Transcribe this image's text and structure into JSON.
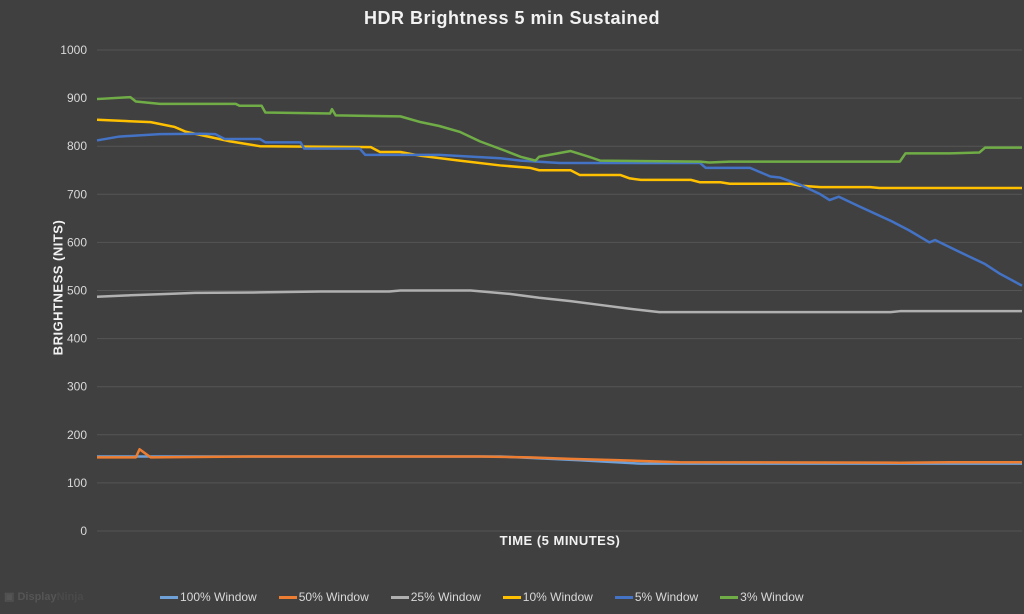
{
  "chart_data": {
    "type": "line",
    "title": "HDR Brightness  5 min Sustained",
    "xlabel": "TIME (5 MINUTES)",
    "ylabel": "BRIGHTNESS (NITS)",
    "xlim": [
      0,
      5
    ],
    "ylim": [
      0,
      1000
    ],
    "yticks": [
      "0",
      "100",
      "200",
      "300",
      "400",
      "500",
      "600",
      "700",
      "800",
      "900",
      "1000"
    ],
    "grid": true,
    "legend": "bottom",
    "series": [
      {
        "name": "100% Window",
        "color": "#6fa0d8",
        "x": [
          0,
          0.83,
          2.18,
          2.61,
          2.94,
          5
        ],
        "y": [
          155,
          155,
          155,
          147,
          140,
          140
        ]
      },
      {
        "name": "50% Window",
        "color": "#ed7d31",
        "x": [
          0,
          0.21,
          0.23,
          0.29,
          0.83,
          2.07,
          2.34,
          2.56,
          2.83,
          3.15,
          4.34,
          4.61,
          5
        ],
        "y": [
          153,
          153,
          170,
          153,
          155,
          155,
          153,
          150,
          147,
          143,
          142,
          143,
          143
        ]
      },
      {
        "name": "25% Window",
        "color": "#b0b0b0",
        "x": [
          0,
          0.18,
          0.39,
          0.53,
          0.88,
          1.21,
          1.58,
          1.64,
          2.02,
          2.23,
          2.39,
          2.56,
          2.72,
          2.88,
          3.04,
          4.29,
          4.34,
          5
        ],
        "y": [
          487,
          490,
          493,
          495,
          496,
          498,
          498,
          500,
          500,
          493,
          485,
          478,
          470,
          462,
          455,
          455,
          457,
          457
        ]
      },
      {
        "name": "10% Window",
        "color": "#ffc000",
        "x": [
          0,
          0.29,
          0.42,
          0.48,
          0.72,
          0.88,
          1.48,
          1.53,
          1.64,
          1.75,
          1.96,
          2.18,
          2.34,
          2.39,
          2.56,
          2.61,
          2.83,
          2.88,
          2.94,
          3.21,
          3.26,
          3.37,
          3.42,
          3.75,
          3.8,
          3.91,
          4.18,
          4.23,
          5
        ],
        "y": [
          855,
          850,
          840,
          830,
          810,
          800,
          798,
          788,
          788,
          780,
          770,
          760,
          755,
          750,
          750,
          740,
          740,
          733,
          730,
          730,
          725,
          725,
          722,
          722,
          718,
          715,
          715,
          713,
          713
        ]
      },
      {
        "name": "5% Window",
        "color": "#4472c4",
        "x": [
          0,
          0.12,
          0.34,
          0.56,
          0.64,
          0.69,
          0.88,
          0.91,
          1.1,
          1.12,
          1.42,
          1.45,
          1.85,
          2.18,
          2.29,
          2.5,
          3.26,
          3.29,
          3.53,
          3.56,
          3.64,
          3.69,
          3.8,
          3.91,
          3.96,
          4.01,
          4.12,
          4.29,
          4.39,
          4.5,
          4.53,
          4.61,
          4.69,
          4.8,
          4.88,
          5
        ],
        "y": [
          812,
          820,
          825,
          826,
          825,
          815,
          815,
          808,
          808,
          795,
          795,
          782,
          782,
          775,
          770,
          765,
          765,
          755,
          755,
          750,
          737,
          735,
          720,
          700,
          688,
          695,
          675,
          645,
          625,
          600,
          605,
          590,
          575,
          555,
          535,
          510
        ]
      },
      {
        "name": "3% Window",
        "color": "#70ad47",
        "x": [
          0,
          0.18,
          0.21,
          0.34,
          0.75,
          0.77,
          0.89,
          0.91,
          1.26,
          1.27,
          1.29,
          1.64,
          1.75,
          1.85,
          1.96,
          2.07,
          2.21,
          2.29,
          2.37,
          2.39,
          2.56,
          2.66,
          2.72,
          3.26,
          3.31,
          3.42,
          4.34,
          4.37,
          4.61,
          4.77,
          4.8,
          5
        ],
        "y": [
          898,
          902,
          893,
          888,
          888,
          884,
          884,
          870,
          868,
          877,
          864,
          862,
          850,
          842,
          830,
          810,
          790,
          778,
          770,
          778,
          790,
          778,
          770,
          768,
          766,
          768,
          768,
          785,
          785,
          787,
          797,
          797
        ]
      }
    ]
  },
  "watermark": "DisplayNinja"
}
